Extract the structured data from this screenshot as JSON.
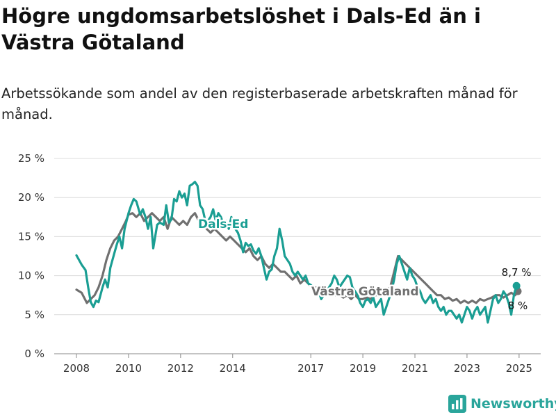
{
  "title": "Högre ungdomsarbetslöshet i Dals-Ed än i Västra Götaland",
  "subtitle": "Arbetssökande som andel av den registerbaserade arbetskraften månad för månad.",
  "brand": "Newsworthy",
  "colors": {
    "dals_ed": "#1a9e93",
    "vastra_gotaland": "#707070",
    "grid": "#dcdcdc",
    "brand": "#2aa59b"
  },
  "chart_data": {
    "type": "line",
    "title": "Högre ungdomsarbetslöshet i Dals-Ed än i Västra Götaland",
    "subtitle": "Arbetssökande som andel av den registerbaserade arbetskraften månad för månad.",
    "ylim": [
      0,
      25
    ],
    "y_ticks": [
      0,
      5,
      10,
      15,
      20,
      25
    ],
    "y_tick_labels": [
      "0 %",
      "5 %",
      "10 %",
      "15 %",
      "20 %",
      "25 %"
    ],
    "x_ticks": [
      2008,
      2010,
      2012,
      2014,
      2017,
      2019,
      2021,
      2023,
      2025
    ],
    "x_tick_labels": [
      "2008",
      "2010",
      "2012",
      "2014",
      "2017",
      "2019",
      "2021",
      "2023",
      "2025"
    ],
    "grid": true,
    "legend": "inline labels",
    "series": [
      {
        "name": "Dals-Ed",
        "color": "#1a9e93",
        "end_label": "8,7 %",
        "points": [
          [
            2008.0,
            12.6
          ],
          [
            2008.2,
            11.4
          ],
          [
            2008.35,
            10.7
          ],
          [
            2008.45,
            8.5
          ],
          [
            2008.55,
            6.6
          ],
          [
            2008.65,
            6.0
          ],
          [
            2008.75,
            6.8
          ],
          [
            2008.85,
            6.6
          ],
          [
            2009.0,
            8.5
          ],
          [
            2009.1,
            9.5
          ],
          [
            2009.2,
            8.5
          ],
          [
            2009.3,
            11.0
          ],
          [
            2009.45,
            12.8
          ],
          [
            2009.55,
            14.0
          ],
          [
            2009.65,
            15.0
          ],
          [
            2009.75,
            13.5
          ],
          [
            2009.85,
            16.0
          ],
          [
            2010.0,
            18.0
          ],
          [
            2010.1,
            19.0
          ],
          [
            2010.2,
            19.8
          ],
          [
            2010.3,
            19.5
          ],
          [
            2010.45,
            17.8
          ],
          [
            2010.55,
            18.5
          ],
          [
            2010.65,
            17.5
          ],
          [
            2010.75,
            16.0
          ],
          [
            2010.85,
            17.5
          ],
          [
            2010.95,
            13.5
          ],
          [
            2011.1,
            16.5
          ],
          [
            2011.2,
            16.8
          ],
          [
            2011.35,
            16.5
          ],
          [
            2011.45,
            19.0
          ],
          [
            2011.55,
            16.8
          ],
          [
            2011.65,
            17.2
          ],
          [
            2011.75,
            19.8
          ],
          [
            2011.85,
            19.5
          ],
          [
            2011.95,
            20.8
          ],
          [
            2012.05,
            20.0
          ],
          [
            2012.15,
            20.5
          ],
          [
            2012.25,
            19.0
          ],
          [
            2012.35,
            21.5
          ],
          [
            2012.45,
            21.7
          ],
          [
            2012.55,
            22.0
          ],
          [
            2012.65,
            21.5
          ],
          [
            2012.75,
            19.0
          ],
          [
            2012.85,
            18.5
          ],
          [
            2012.95,
            17.0
          ],
          [
            2013.05,
            17.0
          ],
          [
            2013.15,
            17.5
          ],
          [
            2013.25,
            18.5
          ],
          [
            2013.35,
            17.0
          ],
          [
            2013.45,
            18.0
          ],
          [
            2013.55,
            17.5
          ],
          [
            2013.65,
            16.5
          ],
          [
            2013.75,
            17.0
          ],
          [
            2013.85,
            16.0
          ],
          [
            2013.95,
            17.5
          ],
          [
            2014.0,
            17.0
          ],
          [
            2014.1,
            16.0
          ],
          [
            2014.2,
            15.5
          ],
          [
            2014.3,
            14.5
          ],
          [
            2014.4,
            13.0
          ],
          [
            2014.5,
            14.2
          ],
          [
            2014.6,
            13.8
          ],
          [
            2014.7,
            14.0
          ],
          [
            2014.8,
            13.2
          ],
          [
            2014.9,
            12.8
          ],
          [
            2015.0,
            13.5
          ],
          [
            2015.1,
            12.5
          ],
          [
            2015.2,
            11.0
          ],
          [
            2015.3,
            9.5
          ],
          [
            2015.4,
            10.5
          ],
          [
            2015.5,
            10.8
          ],
          [
            2015.6,
            12.5
          ],
          [
            2015.7,
            13.5
          ],
          [
            2015.8,
            16.0
          ],
          [
            2015.9,
            14.5
          ],
          [
            2016.0,
            12.5
          ],
          [
            2016.1,
            12.0
          ],
          [
            2016.2,
            11.5
          ],
          [
            2016.3,
            10.5
          ],
          [
            2016.4,
            10.0
          ],
          [
            2016.5,
            10.5
          ],
          [
            2016.6,
            10.0
          ],
          [
            2016.7,
            9.5
          ],
          [
            2016.8,
            10.0
          ],
          [
            2016.9,
            9.0
          ],
          [
            2017.0,
            8.8
          ],
          [
            2017.1,
            8.5
          ],
          [
            2017.2,
            7.5
          ],
          [
            2017.3,
            8.0
          ],
          [
            2017.4,
            7.0
          ],
          [
            2017.5,
            7.5
          ],
          [
            2017.6,
            7.8
          ],
          [
            2017.7,
            8.5
          ],
          [
            2017.8,
            9.0
          ],
          [
            2017.9,
            10.0
          ],
          [
            2018.0,
            9.5
          ],
          [
            2018.1,
            8.5
          ],
          [
            2018.2,
            9.0
          ],
          [
            2018.3,
            9.5
          ],
          [
            2018.4,
            10.0
          ],
          [
            2018.5,
            9.8
          ],
          [
            2018.6,
            8.5
          ],
          [
            2018.7,
            8.0
          ],
          [
            2018.8,
            7.5
          ],
          [
            2018.9,
            6.5
          ],
          [
            2019.0,
            6.0
          ],
          [
            2019.1,
            6.8
          ],
          [
            2019.2,
            7.0
          ],
          [
            2019.3,
            6.5
          ],
          [
            2019.4,
            7.2
          ],
          [
            2019.5,
            6.0
          ],
          [
            2019.6,
            6.5
          ],
          [
            2019.7,
            7.0
          ],
          [
            2019.8,
            5.0
          ],
          [
            2019.9,
            6.0
          ],
          [
            2020.0,
            7.0
          ],
          [
            2020.1,
            8.0
          ],
          [
            2020.2,
            9.5
          ],
          [
            2020.3,
            11.5
          ],
          [
            2020.4,
            12.5
          ],
          [
            2020.5,
            11.5
          ],
          [
            2020.6,
            10.5
          ],
          [
            2020.7,
            9.5
          ],
          [
            2020.8,
            11.0
          ],
          [
            2020.9,
            10.0
          ],
          [
            2021.0,
            9.5
          ],
          [
            2021.1,
            8.5
          ],
          [
            2021.2,
            8.0
          ],
          [
            2021.3,
            7.0
          ],
          [
            2021.4,
            6.5
          ],
          [
            2021.5,
            7.0
          ],
          [
            2021.6,
            7.5
          ],
          [
            2021.7,
            6.5
          ],
          [
            2021.8,
            7.0
          ],
          [
            2021.9,
            6.0
          ],
          [
            2022.0,
            5.5
          ],
          [
            2022.1,
            6.0
          ],
          [
            2022.2,
            5.0
          ],
          [
            2022.3,
            5.5
          ],
          [
            2022.4,
            5.5
          ],
          [
            2022.5,
            5.0
          ],
          [
            2022.6,
            4.5
          ],
          [
            2022.7,
            5.0
          ],
          [
            2022.8,
            4.0
          ],
          [
            2022.9,
            5.0
          ],
          [
            2023.0,
            6.0
          ],
          [
            2023.1,
            5.5
          ],
          [
            2023.2,
            4.5
          ],
          [
            2023.3,
            5.5
          ],
          [
            2023.4,
            6.0
          ],
          [
            2023.5,
            5.0
          ],
          [
            2023.6,
            5.5
          ],
          [
            2023.7,
            6.0
          ],
          [
            2023.8,
            4.0
          ],
          [
            2023.9,
            5.5
          ],
          [
            2024.0,
            7.0
          ],
          [
            2024.1,
            7.5
          ],
          [
            2024.2,
            6.5
          ],
          [
            2024.3,
            7.0
          ],
          [
            2024.4,
            8.0
          ],
          [
            2024.5,
            7.5
          ],
          [
            2024.6,
            6.5
          ],
          [
            2024.7,
            5.0
          ],
          [
            2024.8,
            7.5
          ],
          [
            2024.9,
            8.7
          ]
        ]
      },
      {
        "name": "Västra Götaland",
        "color": "#707070",
        "end_label": "8 %",
        "points": [
          [
            2008.0,
            8.2
          ],
          [
            2008.2,
            7.8
          ],
          [
            2008.4,
            6.5
          ],
          [
            2008.55,
            7.0
          ],
          [
            2008.7,
            7.5
          ],
          [
            2008.85,
            8.5
          ],
          [
            2009.0,
            10.0
          ],
          [
            2009.15,
            12.0
          ],
          [
            2009.3,
            13.5
          ],
          [
            2009.45,
            14.5
          ],
          [
            2009.6,
            15.0
          ],
          [
            2009.75,
            16.0
          ],
          [
            2009.9,
            17.0
          ],
          [
            2010.0,
            17.8
          ],
          [
            2010.15,
            18.0
          ],
          [
            2010.3,
            17.5
          ],
          [
            2010.45,
            18.0
          ],
          [
            2010.6,
            17.0
          ],
          [
            2010.75,
            17.5
          ],
          [
            2010.9,
            18.0
          ],
          [
            2011.05,
            17.5
          ],
          [
            2011.2,
            17.0
          ],
          [
            2011.35,
            17.5
          ],
          [
            2011.5,
            16.0
          ],
          [
            2011.65,
            17.5
          ],
          [
            2011.8,
            17.0
          ],
          [
            2011.95,
            16.5
          ],
          [
            2012.1,
            17.0
          ],
          [
            2012.25,
            16.5
          ],
          [
            2012.4,
            17.5
          ],
          [
            2012.55,
            18.0
          ],
          [
            2012.7,
            17.0
          ],
          [
            2012.85,
            16.5
          ],
          [
            2013.0,
            16.0
          ],
          [
            2013.15,
            15.5
          ],
          [
            2013.3,
            16.0
          ],
          [
            2013.45,
            15.5
          ],
          [
            2013.6,
            15.0
          ],
          [
            2013.75,
            14.5
          ],
          [
            2013.9,
            15.0
          ],
          [
            2014.05,
            14.5
          ],
          [
            2014.2,
            14.0
          ],
          [
            2014.35,
            13.5
          ],
          [
            2014.5,
            13.0
          ],
          [
            2014.65,
            13.5
          ],
          [
            2014.8,
            12.5
          ],
          [
            2014.95,
            12.0
          ],
          [
            2015.1,
            12.5
          ],
          [
            2015.25,
            11.5
          ],
          [
            2015.4,
            11.0
          ],
          [
            2015.55,
            11.5
          ],
          [
            2015.7,
            11.0
          ],
          [
            2015.85,
            10.5
          ],
          [
            2016.0,
            10.5
          ],
          [
            2016.15,
            10.0
          ],
          [
            2016.3,
            9.5
          ],
          [
            2016.45,
            10.0
          ],
          [
            2016.6,
            9.0
          ],
          [
            2016.75,
            9.5
          ],
          [
            2016.9,
            9.0
          ],
          [
            2017.05,
            8.5
          ],
          [
            2017.2,
            8.5
          ],
          [
            2017.35,
            8.0
          ],
          [
            2017.5,
            8.0
          ],
          [
            2017.65,
            7.8
          ],
          [
            2017.8,
            8.0
          ],
          [
            2017.95,
            7.5
          ],
          [
            2018.1,
            7.5
          ],
          [
            2018.25,
            7.2
          ],
          [
            2018.4,
            7.5
          ],
          [
            2018.55,
            7.0
          ],
          [
            2018.7,
            7.5
          ],
          [
            2018.85,
            7.0
          ],
          [
            2019.0,
            7.0
          ],
          [
            2019.15,
            7.2
          ],
          [
            2019.3,
            7.0
          ],
          [
            2019.45,
            7.5
          ],
          [
            2019.6,
            7.5
          ],
          [
            2019.75,
            7.8
          ],
          [
            2019.9,
            8.0
          ],
          [
            2020.05,
            8.5
          ],
          [
            2020.2,
            10.5
          ],
          [
            2020.35,
            12.5
          ],
          [
            2020.5,
            12.0
          ],
          [
            2020.65,
            11.5
          ],
          [
            2020.8,
            11.0
          ],
          [
            2020.95,
            10.5
          ],
          [
            2021.1,
            10.0
          ],
          [
            2021.25,
            9.5
          ],
          [
            2021.4,
            9.0
          ],
          [
            2021.55,
            8.5
          ],
          [
            2021.7,
            8.0
          ],
          [
            2021.85,
            7.5
          ],
          [
            2022.0,
            7.5
          ],
          [
            2022.15,
            7.0
          ],
          [
            2022.3,
            7.2
          ],
          [
            2022.45,
            6.8
          ],
          [
            2022.6,
            7.0
          ],
          [
            2022.75,
            6.5
          ],
          [
            2022.9,
            6.8
          ],
          [
            2023.05,
            6.5
          ],
          [
            2023.2,
            6.8
          ],
          [
            2023.35,
            6.5
          ],
          [
            2023.5,
            7.0
          ],
          [
            2023.65,
            6.8
          ],
          [
            2023.8,
            7.0
          ],
          [
            2023.95,
            7.2
          ],
          [
            2024.1,
            7.5
          ],
          [
            2024.25,
            7.5
          ],
          [
            2024.4,
            7.2
          ],
          [
            2024.55,
            7.5
          ],
          [
            2024.7,
            7.8
          ],
          [
            2024.85,
            7.5
          ],
          [
            2024.95,
            8.0
          ]
        ]
      }
    ]
  }
}
